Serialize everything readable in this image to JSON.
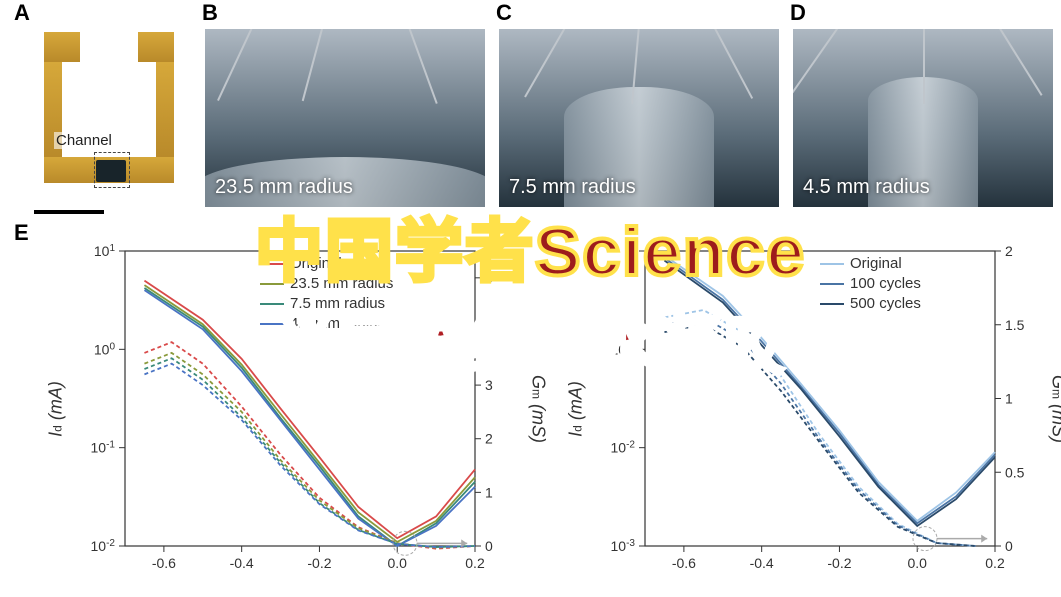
{
  "labels": {
    "A": "A",
    "B": "B",
    "C": "C",
    "D": "D",
    "E": "E"
  },
  "panelA": {
    "channel_label": "Channel",
    "device_color": "#c79a33",
    "channel_color": "#18242a"
  },
  "photos": {
    "B": {
      "caption": "23.5 mm radius"
    },
    "C": {
      "caption": "7.5 mm radius"
    },
    "D": {
      "caption": "4.5 mm radius"
    }
  },
  "headline": {
    "line1": "中国学者Science",
    "line2": "半导体结合水凝胶",
    "line1_fill": "#9d1c1c",
    "line1_stroke": "#ffe14a",
    "line2_fill": "#b01f24",
    "line2_stroke": "#ffffff"
  },
  "chart_left": {
    "type": "line-log",
    "x_label": "",
    "y_left_label": "I_d (mA)",
    "y_right_label": "G_m (mS)",
    "xlim": [
      -0.7,
      0.2
    ],
    "xticks": [
      -0.6,
      -0.4,
      -0.2,
      0.0,
      0.2
    ],
    "y_left_log_ticks": [
      "10^1",
      "10^0",
      "10^-1",
      "10^-2"
    ],
    "y_left_range_log": [
      -2,
      1
    ],
    "y_right_lim": [
      0,
      5.5
    ],
    "y_right_ticks": [
      0,
      1,
      2,
      3,
      4,
      5
    ],
    "legend": [
      {
        "label": "Original",
        "color": "#d94a4a"
      },
      {
        "label": "23.5 mm radius",
        "color": "#8a9a3b"
      },
      {
        "label": "7.5 mm radius",
        "color": "#3a8a7a"
      },
      {
        "label": "4.5 mm radius",
        "color": "#4a74c4"
      }
    ],
    "series_Id": [
      {
        "color": "#d94a4a",
        "points": [
          [
            -0.65,
            5.0
          ],
          [
            -0.5,
            2.0
          ],
          [
            -0.4,
            0.8
          ],
          [
            -0.3,
            0.25
          ],
          [
            -0.2,
            0.08
          ],
          [
            -0.1,
            0.025
          ],
          [
            0.0,
            0.012
          ],
          [
            0.1,
            0.02
          ],
          [
            0.2,
            0.06
          ]
        ]
      },
      {
        "color": "#8a9a3b",
        "points": [
          [
            -0.65,
            4.5
          ],
          [
            -0.5,
            1.8
          ],
          [
            -0.4,
            0.7
          ],
          [
            -0.3,
            0.22
          ],
          [
            -0.2,
            0.07
          ],
          [
            -0.1,
            0.022
          ],
          [
            0.0,
            0.011
          ],
          [
            0.1,
            0.018
          ],
          [
            0.2,
            0.05
          ]
        ]
      },
      {
        "color": "#3a8a7a",
        "points": [
          [
            -0.65,
            4.2
          ],
          [
            -0.5,
            1.7
          ],
          [
            -0.4,
            0.65
          ],
          [
            -0.3,
            0.2
          ],
          [
            -0.2,
            0.065
          ],
          [
            -0.1,
            0.02
          ],
          [
            0.0,
            0.01
          ],
          [
            0.1,
            0.017
          ],
          [
            0.2,
            0.045
          ]
        ]
      },
      {
        "color": "#4a74c4",
        "points": [
          [
            -0.65,
            4.0
          ],
          [
            -0.5,
            1.6
          ],
          [
            -0.4,
            0.6
          ],
          [
            -0.3,
            0.19
          ],
          [
            -0.2,
            0.06
          ],
          [
            -0.1,
            0.019
          ],
          [
            0.0,
            0.01
          ],
          [
            0.1,
            0.016
          ],
          [
            0.2,
            0.04
          ]
        ]
      }
    ],
    "series_Gm": [
      {
        "color": "#d94a4a",
        "points": [
          [
            -0.65,
            3.6
          ],
          [
            -0.58,
            3.8
          ],
          [
            -0.5,
            3.4
          ],
          [
            -0.4,
            2.6
          ],
          [
            -0.3,
            1.7
          ],
          [
            -0.2,
            0.9
          ],
          [
            -0.1,
            0.35
          ],
          [
            0.0,
            0.05
          ],
          [
            0.1,
            -0.05
          ],
          [
            0.2,
            0.0
          ]
        ]
      },
      {
        "color": "#8a9a3b",
        "points": [
          [
            -0.65,
            3.4
          ],
          [
            -0.58,
            3.6
          ],
          [
            -0.5,
            3.2
          ],
          [
            -0.4,
            2.5
          ],
          [
            -0.3,
            1.6
          ],
          [
            -0.2,
            0.85
          ],
          [
            -0.1,
            0.33
          ],
          [
            0.0,
            0.05
          ],
          [
            0.1,
            -0.03
          ],
          [
            0.2,
            0.0
          ]
        ]
      },
      {
        "color": "#3a8a7a",
        "points": [
          [
            -0.65,
            3.3
          ],
          [
            -0.58,
            3.5
          ],
          [
            -0.5,
            3.1
          ],
          [
            -0.4,
            2.4
          ],
          [
            -0.3,
            1.55
          ],
          [
            -0.2,
            0.8
          ],
          [
            -0.1,
            0.3
          ],
          [
            0.0,
            0.04
          ],
          [
            0.1,
            -0.02
          ],
          [
            0.2,
            0.0
          ]
        ]
      },
      {
        "color": "#4a74c4",
        "points": [
          [
            -0.65,
            3.2
          ],
          [
            -0.58,
            3.4
          ],
          [
            -0.5,
            3.0
          ],
          [
            -0.4,
            2.35
          ],
          [
            -0.3,
            1.5
          ],
          [
            -0.2,
            0.78
          ],
          [
            -0.1,
            0.29
          ],
          [
            0.0,
            0.04
          ],
          [
            0.1,
            -0.02
          ],
          [
            0.2,
            0.0
          ]
        ]
      }
    ],
    "line_width": 1.8,
    "dash": "4 3",
    "axis_color": "#333333",
    "grid": false
  },
  "chart_right": {
    "type": "line-log",
    "y_left_label": "I_d (mA)",
    "y_right_label": "G_m (mS)",
    "xlim": [
      -0.7,
      0.2
    ],
    "xticks": [
      -0.6,
      -0.4,
      -0.2,
      0.0,
      0.2
    ],
    "y_left_log_ticks": [
      "",
      "10^-1",
      "10^-2",
      "10^-3"
    ],
    "y_left_range_log": [
      -3,
      0
    ],
    "y_right_lim": [
      0,
      2.0
    ],
    "y_right_ticks": [
      0,
      0.5,
      1.0,
      1.5,
      2.0
    ],
    "legend": [
      {
        "label": "Original",
        "color": "#9ec4e6"
      },
      {
        "label": "100 cycles",
        "color": "#4a74a4"
      },
      {
        "label": "500 cycles",
        "color": "#2a4a6a"
      }
    ],
    "series_Id": [
      {
        "color": "#9ec4e6",
        "points": [
          [
            -0.65,
            0.9
          ],
          [
            -0.5,
            0.35
          ],
          [
            -0.4,
            0.13
          ],
          [
            -0.3,
            0.045
          ],
          [
            -0.2,
            0.015
          ],
          [
            -0.1,
            0.0045
          ],
          [
            0.0,
            0.0018
          ],
          [
            0.1,
            0.0035
          ],
          [
            0.2,
            0.009
          ]
        ]
      },
      {
        "color": "#4a74a4",
        "points": [
          [
            -0.65,
            0.85
          ],
          [
            -0.5,
            0.32
          ],
          [
            -0.4,
            0.12
          ],
          [
            -0.3,
            0.042
          ],
          [
            -0.2,
            0.014
          ],
          [
            -0.1,
            0.0042
          ],
          [
            0.0,
            0.0017
          ],
          [
            0.1,
            0.0032
          ],
          [
            0.2,
            0.0085
          ]
        ]
      },
      {
        "color": "#2a4a6a",
        "points": [
          [
            -0.65,
            0.8
          ],
          [
            -0.5,
            0.3
          ],
          [
            -0.4,
            0.11
          ],
          [
            -0.3,
            0.04
          ],
          [
            -0.2,
            0.013
          ],
          [
            -0.1,
            0.004
          ],
          [
            0.0,
            0.0016
          ],
          [
            0.1,
            0.003
          ],
          [
            0.2,
            0.008
          ]
        ]
      }
    ],
    "series_Gm": [
      {
        "color": "#9ec4e6",
        "points": [
          [
            -0.65,
            1.55
          ],
          [
            -0.55,
            1.6
          ],
          [
            -0.45,
            1.45
          ],
          [
            -0.35,
            1.15
          ],
          [
            -0.25,
            0.75
          ],
          [
            -0.15,
            0.4
          ],
          [
            -0.05,
            0.15
          ],
          [
            0.05,
            0.02
          ],
          [
            0.15,
            0.0
          ]
        ]
      },
      {
        "color": "#4a74a4",
        "points": [
          [
            -0.65,
            1.5
          ],
          [
            -0.55,
            1.55
          ],
          [
            -0.45,
            1.4
          ],
          [
            -0.35,
            1.1
          ],
          [
            -0.25,
            0.72
          ],
          [
            -0.15,
            0.38
          ],
          [
            -0.05,
            0.14
          ],
          [
            0.05,
            0.02
          ],
          [
            0.15,
            0.0
          ]
        ]
      },
      {
        "color": "#2a4a6a",
        "points": [
          [
            -0.65,
            1.45
          ],
          [
            -0.55,
            1.5
          ],
          [
            -0.45,
            1.35
          ],
          [
            -0.35,
            1.05
          ],
          [
            -0.25,
            0.7
          ],
          [
            -0.15,
            0.36
          ],
          [
            -0.05,
            0.13
          ],
          [
            0.05,
            0.02
          ],
          [
            0.15,
            0.0
          ]
        ]
      }
    ],
    "line_width": 1.8,
    "dash": "4 3",
    "axis_color": "#333333"
  }
}
